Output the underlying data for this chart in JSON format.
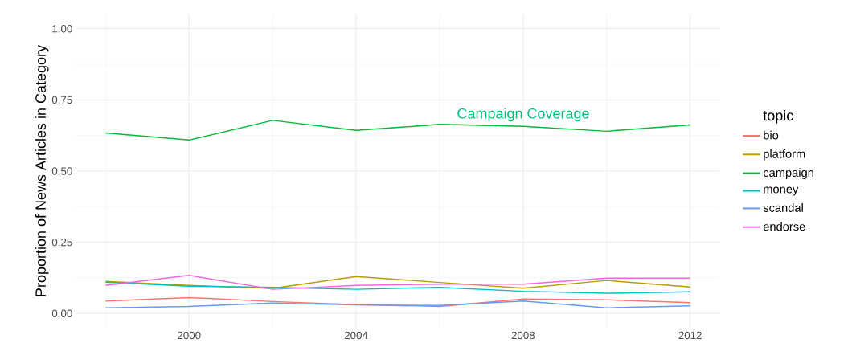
{
  "chart_data": {
    "type": "line",
    "ylabel": "Proportion of News Articles in Category",
    "legend_title": "topic",
    "x": [
      1998,
      2000,
      2002,
      2004,
      2006,
      2008,
      2010,
      2012
    ],
    "series": [
      {
        "name": "bio",
        "color": "#f8766d",
        "values": [
          0.044,
          0.056,
          0.042,
          0.031,
          0.025,
          0.051,
          0.048,
          0.038
        ]
      },
      {
        "name": "platform",
        "color": "#b79f00",
        "values": [
          0.113,
          0.099,
          0.088,
          0.13,
          0.109,
          0.089,
          0.116,
          0.093
        ]
      },
      {
        "name": "campaign",
        "color": "#00ba38",
        "values": [
          0.634,
          0.609,
          0.678,
          0.643,
          0.664,
          0.657,
          0.64,
          0.662
        ]
      },
      {
        "name": "money",
        "color": "#00bfc4",
        "values": [
          0.11,
          0.096,
          0.092,
          0.085,
          0.092,
          0.078,
          0.071,
          0.076
        ]
      },
      {
        "name": "scandal",
        "color": "#619cff",
        "values": [
          0.02,
          0.025,
          0.037,
          0.03,
          0.028,
          0.044,
          0.02,
          0.027
        ]
      },
      {
        "name": "endorse",
        "color": "#f564e3",
        "values": [
          0.099,
          0.134,
          0.085,
          0.099,
          0.103,
          0.103,
          0.124,
          0.124
        ]
      }
    ],
    "annotations": [
      "Campaign Coverage"
    ],
    "xlim": [
      1997.3,
      2012.7
    ],
    "ylim": [
      -0.05,
      1.05
    ],
    "xticks": [
      {
        "value": 1998,
        "label": null
      },
      2000,
      {
        "value": 2002,
        "label": null
      },
      2004,
      {
        "value": 2006,
        "label": null
      },
      2008,
      {
        "value": 2010,
        "label": null
      },
      2012
    ],
    "yticks": [
      {
        "value": 0,
        "label": "0.00"
      },
      {
        "value": 0.125,
        "label": null
      },
      {
        "value": 0.25,
        "label": "0.25"
      },
      {
        "value": 0.375,
        "label": null
      },
      {
        "value": 0.5,
        "label": "0.50"
      },
      {
        "value": 0.625,
        "label": null
      },
      {
        "value": 0.75,
        "label": "0.75"
      },
      {
        "value": 0.875,
        "label": null
      },
      {
        "value": 1.0,
        "label": "1.00"
      }
    ],
    "grid": true,
    "legend": "right",
    "marker": "none",
    "line_style": "solid"
  }
}
